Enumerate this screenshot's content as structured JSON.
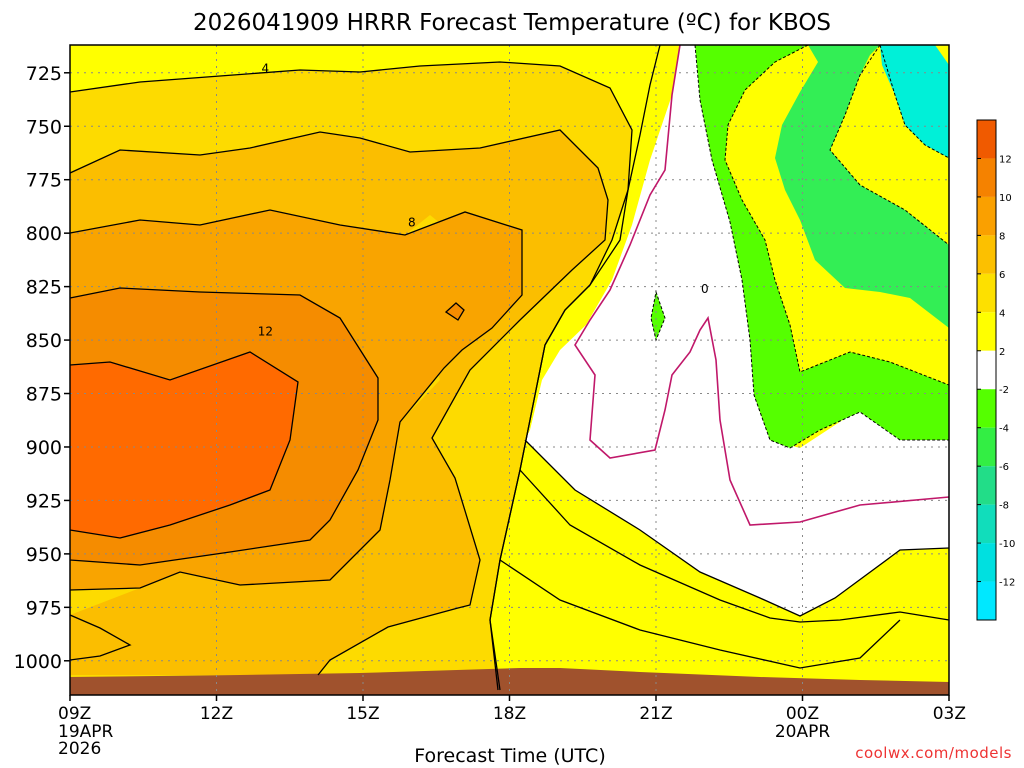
{
  "chart_data": {
    "type": "heatmap",
    "title": "2026041909 HRRR Forecast Temperature (ºC) for KBOS",
    "xlabel": "Forecast Time (UTC)",
    "credit": "coolwx.com/models",
    "x_ticks": [
      {
        "label": "09Z",
        "hour": 0,
        "sub": [
          "19APR",
          "2026"
        ]
      },
      {
        "label": "12Z",
        "hour": 3,
        "sub": []
      },
      {
        "label": "15Z",
        "hour": 6,
        "sub": []
      },
      {
        "label": "18Z",
        "hour": 9,
        "sub": []
      },
      {
        "label": "21Z",
        "hour": 12,
        "sub": []
      },
      {
        "label": "00Z",
        "hour": 15,
        "sub": [
          "20APR"
        ]
      },
      {
        "label": "03Z",
        "hour": 18,
        "sub": []
      }
    ],
    "y_ticks": [
      725,
      750,
      775,
      800,
      825,
      850,
      875,
      900,
      925,
      950,
      975,
      1000
    ],
    "ylim": [
      1016,
      712
    ],
    "contour_labels": [
      {
        "text": "4",
        "hour": 4.0,
        "p": 723
      },
      {
        "text": "8",
        "hour": 7.0,
        "p": 795
      },
      {
        "text": "12",
        "hour": 4.0,
        "p": 846
      },
      {
        "text": "0",
        "hour": 13.0,
        "p": 826
      }
    ],
    "colorbar": {
      "levels": [
        "12",
        "10",
        "8",
        "6",
        "4",
        "2",
        "-2",
        "-4",
        "-6",
        "-8",
        "-10",
        "-12"
      ],
      "colors": [
        "#f05a00",
        "#f58200",
        "#faa000",
        "#fcc000",
        "#fde000",
        "#ffff00",
        "#ffffff",
        "#55ff00",
        "#33ee44",
        "#22dd88",
        "#11ddbb",
        "#00e0e0",
        "#00e8ff"
      ]
    },
    "fill_colors": {
      "t12": "#ff6a00",
      "t10": "#f58c00",
      "t8": "#f9a400",
      "t6": "#fbbe00",
      "t4": "#fddb00",
      "t2": "#ffff00",
      "t0": "#ffffff",
      "tm2": "#55ff00",
      "tm4": "#33ee55",
      "tm6": "#22dd99",
      "tm8": "#00f0d8",
      "ground": "#a0522d",
      "zero_line": "#c0186a"
    }
  }
}
